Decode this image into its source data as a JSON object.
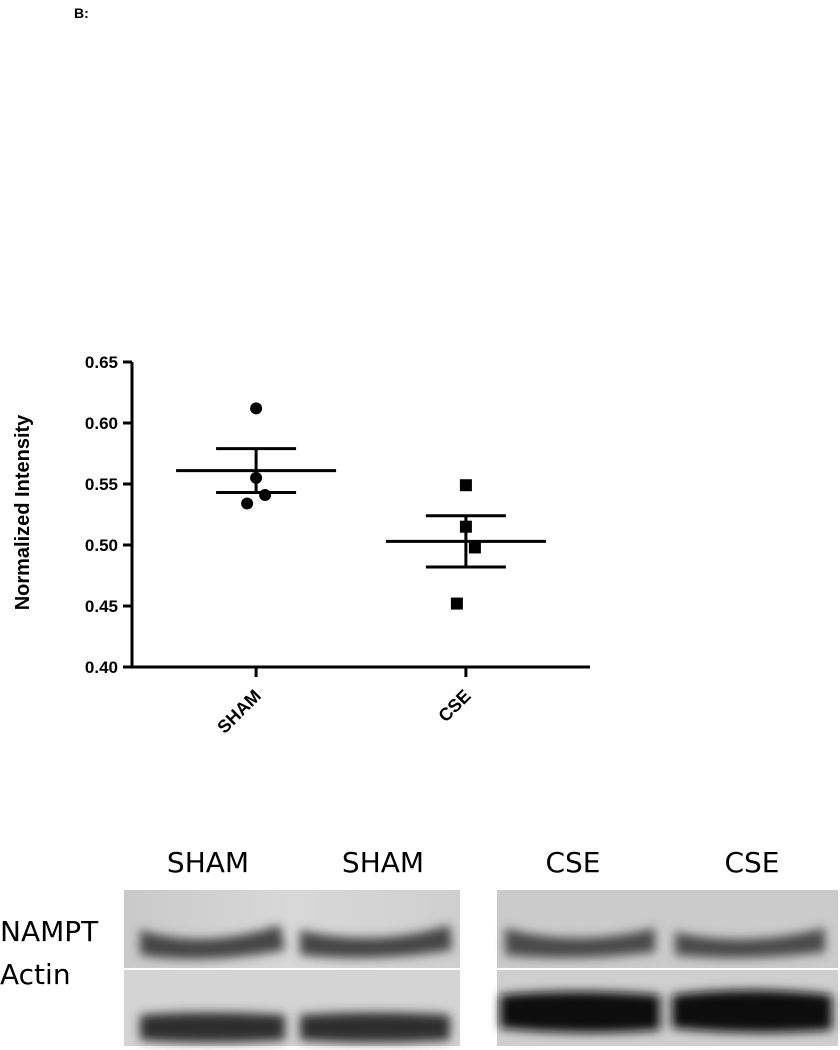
{
  "panel_label": "B:",
  "chart_data": {
    "type": "dot",
    "ylabel": "Normalized Intensity",
    "ylim": [
      0.4,
      0.65
    ],
    "yticks": [
      {
        "value": 0.4,
        "label": "0.40"
      },
      0.45,
      {
        "value": 0.5,
        "label": "0.50"
      },
      0.55,
      {
        "value": 0.6,
        "label": "0.60"
      },
      0.65
    ],
    "color": "#000000",
    "groups": [
      {
        "name": "SHAM",
        "marker": "circle",
        "values": [
          0.612,
          0.555,
          0.541,
          0.534
        ],
        "mean": 0.561,
        "sem": 0.018
      },
      {
        "name": "CSE",
        "marker": "square",
        "values": [
          0.549,
          0.515,
          0.498,
          0.452
        ],
        "mean": 0.503,
        "sem": 0.021
      }
    ]
  },
  "blot": {
    "lanes": [
      "SHAM",
      "SHAM",
      "CSE",
      "CSE"
    ],
    "rows": [
      "NAMPT",
      "Actin"
    ]
  }
}
